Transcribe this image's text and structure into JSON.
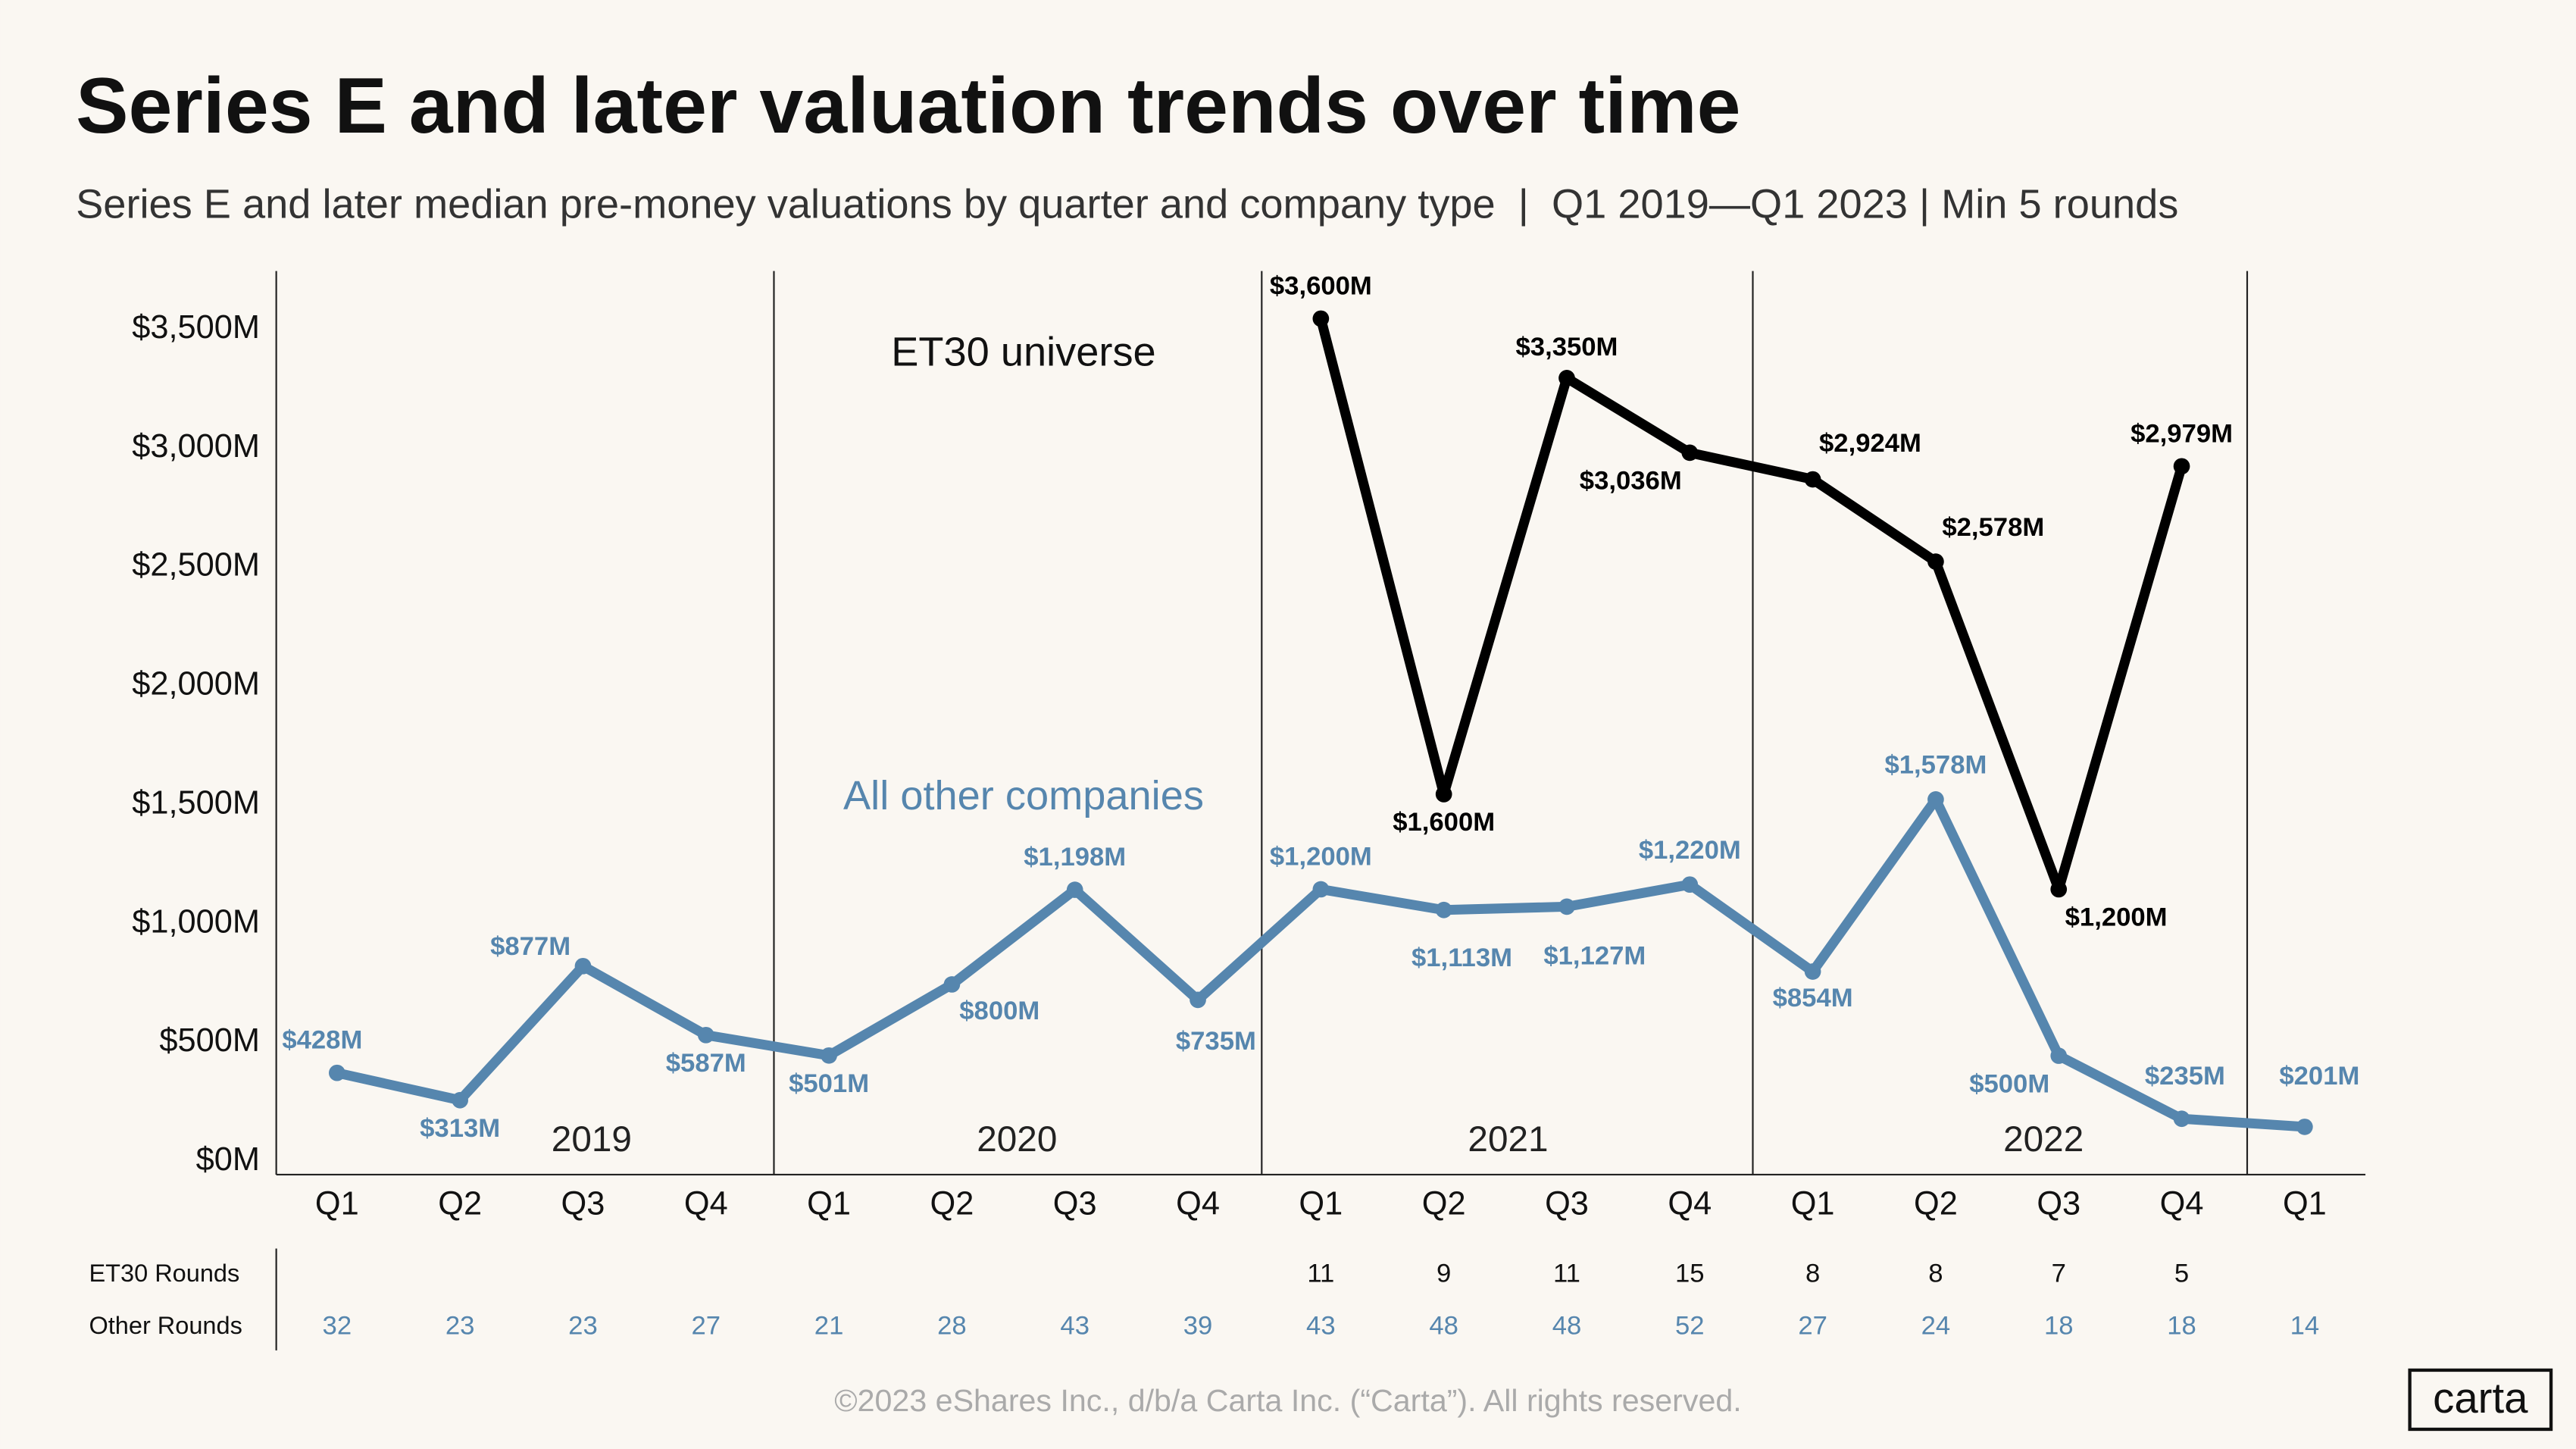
{
  "chart_data": {
    "type": "line",
    "title": "Series E and later valuation trends over time",
    "subtitle": "Series E and later median pre-money valuations by quarter and company type  |  Q1 2019—Q1 2023 | Min 5 rounds",
    "categories": [
      "Q1",
      "Q2",
      "Q3",
      "Q4",
      "Q1",
      "Q2",
      "Q3",
      "Q4",
      "Q1",
      "Q2",
      "Q3",
      "Q4",
      "Q1",
      "Q2",
      "Q3",
      "Q4",
      "Q1"
    ],
    "years": [
      "2019",
      "2020",
      "2021",
      "2022"
    ],
    "ylim": [
      0,
      3800
    ],
    "yticks": [
      {
        "value": 0,
        "label": "$0M"
      },
      {
        "value": 500,
        "label": "$500M"
      },
      {
        "value": 1000,
        "label": "$1,000M"
      },
      {
        "value": 1500,
        "label": "$1,500M"
      },
      {
        "value": 2000,
        "label": "$2,000M"
      },
      {
        "value": 2500,
        "label": "$2,500M"
      },
      {
        "value": 3000,
        "label": "$3,000M"
      },
      {
        "value": 3500,
        "label": "$3,500M"
      }
    ],
    "series": [
      {
        "name": "ET30 universe",
        "color": "#000000",
        "values": [
          null,
          null,
          null,
          null,
          null,
          null,
          null,
          null,
          3600,
          1600,
          3350,
          3036,
          2924,
          2578,
          1200,
          2979,
          null
        ],
        "value_labels": [
          null,
          null,
          null,
          null,
          null,
          null,
          null,
          null,
          "$3,600M",
          "$1,600M",
          "$3,350M",
          "$3,036M",
          "$2,924M",
          "$2,578M",
          "$1,200M",
          "$2,979M",
          null
        ]
      },
      {
        "name": "All other companies",
        "color": "#5686ae",
        "values": [
          428,
          313,
          877,
          587,
          501,
          800,
          1198,
          735,
          1200,
          1113,
          1127,
          1220,
          854,
          1578,
          500,
          235,
          201
        ],
        "value_labels": [
          "$428M",
          "$313M",
          "$877M",
          "$587M",
          "$501M",
          "$800M",
          "$1,198M",
          "$735M",
          "$1,200M",
          "$1,113M",
          "$1,127M",
          "$1,220M",
          "$854M",
          "$1,578M",
          "$500M",
          "$235M",
          "$201M"
        ]
      }
    ],
    "rounds": [
      {
        "name": "ET30 Rounds",
        "values": [
          null,
          null,
          null,
          null,
          null,
          null,
          null,
          null,
          11,
          9,
          11,
          15,
          8,
          8,
          7,
          5,
          null
        ]
      },
      {
        "name": "Other Rounds",
        "values": [
          32,
          23,
          23,
          27,
          21,
          28,
          43,
          39,
          43,
          48,
          48,
          52,
          27,
          24,
          18,
          18,
          14
        ]
      }
    ]
  },
  "footer": "©2023 eShares Inc., d/b/a Carta Inc. (“Carta”). All rights reserved.",
  "logo": "carta"
}
